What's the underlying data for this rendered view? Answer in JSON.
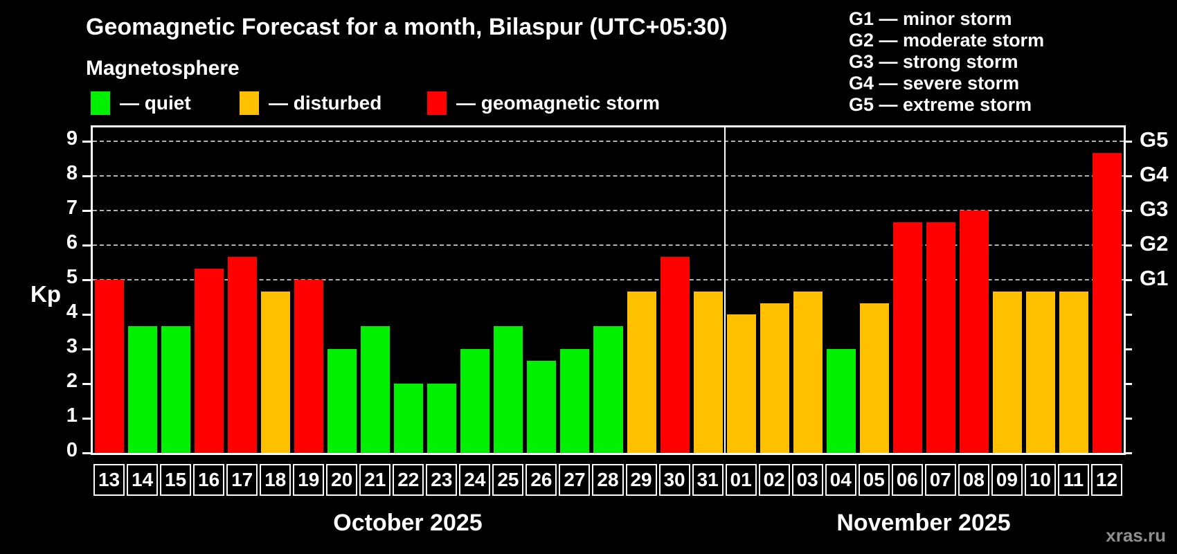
{
  "header": {
    "title": "Geomagnetic Forecast for a month, Bilaspur (UTC+05:30)",
    "subtitle": "Magnetosphere"
  },
  "legend": {
    "items": [
      {
        "label": "— quiet",
        "status": "quiet"
      },
      {
        "label": "— disturbed",
        "status": "disturbed"
      },
      {
        "label": "— geomagnetic storm",
        "status": "storm"
      }
    ]
  },
  "storm_scale": {
    "items": [
      "G1 — minor storm",
      "G2 — moderate storm",
      "G3 — strong storm",
      "G4 — severe storm",
      "G5 — extreme storm"
    ]
  },
  "watermark": "xras.ru",
  "chart_data": {
    "type": "bar",
    "title": "Geomagnetic Forecast for a month, Bilaspur (UTC+05:30)",
    "subtitle": "Magnetosphere",
    "ylabel": "Kp",
    "ylim": [
      0,
      9.4
    ],
    "yticks": [
      0,
      1,
      2,
      3,
      4,
      5,
      6,
      7,
      8,
      9
    ],
    "grid": "horizontal dashed lines at storm levels only",
    "grid_levels": [
      5,
      6,
      7,
      8,
      9
    ],
    "right_axis": [
      {
        "kp": 5,
        "label": "G1"
      },
      {
        "kp": 6,
        "label": "G2"
      },
      {
        "kp": 7,
        "label": "G3"
      },
      {
        "kp": 8,
        "label": "G4"
      },
      {
        "kp": 9,
        "label": "G5"
      }
    ],
    "status_colors": {
      "quiet": "#00f000",
      "disturbed": "#ffc000",
      "storm": "#ff0000"
    },
    "background_color": "#000000",
    "legend_position": "top-left",
    "sections": [
      {
        "label": "October 2025",
        "days": 19
      },
      {
        "label": "November 2025",
        "days": 12
      }
    ],
    "bars": [
      {
        "day": "13",
        "kp": 5.0,
        "status": "storm"
      },
      {
        "day": "14",
        "kp": 3.67,
        "status": "quiet"
      },
      {
        "day": "15",
        "kp": 3.67,
        "status": "quiet"
      },
      {
        "day": "16",
        "kp": 5.33,
        "status": "storm"
      },
      {
        "day": "17",
        "kp": 5.67,
        "status": "storm"
      },
      {
        "day": "18",
        "kp": 4.67,
        "status": "disturbed"
      },
      {
        "day": "19",
        "kp": 5.0,
        "status": "storm"
      },
      {
        "day": "20",
        "kp": 3.0,
        "status": "quiet"
      },
      {
        "day": "21",
        "kp": 3.67,
        "status": "quiet"
      },
      {
        "day": "22",
        "kp": 2.0,
        "status": "quiet"
      },
      {
        "day": "23",
        "kp": 2.0,
        "status": "quiet"
      },
      {
        "day": "24",
        "kp": 3.0,
        "status": "quiet"
      },
      {
        "day": "25",
        "kp": 3.67,
        "status": "quiet"
      },
      {
        "day": "26",
        "kp": 2.67,
        "status": "quiet"
      },
      {
        "day": "27",
        "kp": 3.0,
        "status": "quiet"
      },
      {
        "day": "28",
        "kp": 3.67,
        "status": "quiet"
      },
      {
        "day": "29",
        "kp": 4.67,
        "status": "disturbed"
      },
      {
        "day": "30",
        "kp": 5.67,
        "status": "storm"
      },
      {
        "day": "31",
        "kp": 4.67,
        "status": "disturbed"
      },
      {
        "day": "01",
        "kp": 4.0,
        "status": "disturbed"
      },
      {
        "day": "02",
        "kp": 4.33,
        "status": "disturbed"
      },
      {
        "day": "03",
        "kp": 4.67,
        "status": "disturbed"
      },
      {
        "day": "04",
        "kp": 3.0,
        "status": "quiet"
      },
      {
        "day": "05",
        "kp": 4.33,
        "status": "disturbed"
      },
      {
        "day": "06",
        "kp": 6.67,
        "status": "storm"
      },
      {
        "day": "07",
        "kp": 6.67,
        "status": "storm"
      },
      {
        "day": "08",
        "kp": 7.0,
        "status": "storm"
      },
      {
        "day": "09",
        "kp": 4.67,
        "status": "disturbed"
      },
      {
        "day": "10",
        "kp": 4.67,
        "status": "disturbed"
      },
      {
        "day": "11",
        "kp": 4.67,
        "status": "disturbed"
      },
      {
        "day": "12",
        "kp": 8.67,
        "status": "storm"
      }
    ]
  }
}
